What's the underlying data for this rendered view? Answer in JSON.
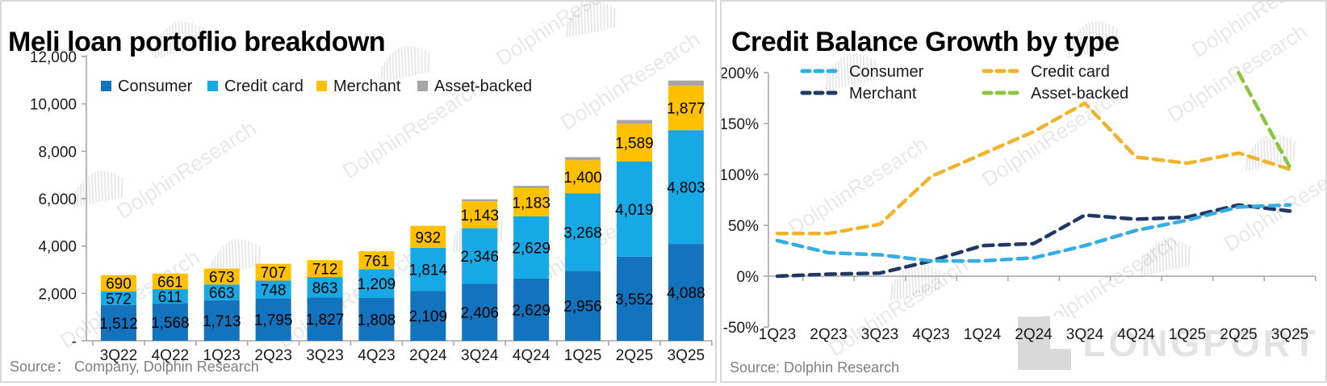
{
  "watermark": {
    "brand": "DolphinResearch",
    "portal": "LONGPORT"
  },
  "left_panel": {
    "title": "Meli loan portoflio breakdown",
    "source": "Source：  Company, Dolphin Research"
  },
  "right_panel": {
    "title": "Credit Balance Growth by type",
    "source": "Source: Dolphin Research"
  },
  "chart_data": [
    {
      "type": "bar",
      "stacked": true,
      "title": "Meli loan portoflio breakdown",
      "categories": [
        "3Q22",
        "4Q22",
        "1Q23",
        "2Q23",
        "3Q23",
        "4Q23",
        "2Q24",
        "3Q24",
        "4Q24",
        "1Q25",
        "2Q25",
        "3Q25"
      ],
      "series": [
        {
          "name": "Consumer",
          "color": "#1373BC",
          "data_labels": true,
          "values": [
            1512,
            1568,
            1713,
            1795,
            1827,
            1808,
            2109,
            2406,
            2629,
            2956,
            3552,
            4088
          ]
        },
        {
          "name": "Credit card",
          "color": "#16A9E6",
          "data_labels": true,
          "values": [
            572,
            611,
            663,
            748,
            863,
            1209,
            1814,
            2346,
            2629,
            3268,
            4019,
            4803
          ]
        },
        {
          "name": "Merchant",
          "color": "#FFC000",
          "data_labels": true,
          "values": [
            690,
            661,
            673,
            707,
            712,
            761,
            932,
            1143,
            1183,
            1400,
            1589,
            1877
          ]
        },
        {
          "name": "Asset-backed",
          "color": "#A6A6A6",
          "data_labels": false,
          "values": [
            0,
            0,
            0,
            0,
            0,
            0,
            0,
            80,
            100,
            130,
            160,
            220
          ]
        }
      ],
      "ylim": [
        0,
        12000
      ],
      "y_ticks": [
        12000,
        10000,
        8000,
        6000,
        4000,
        2000,
        0
      ],
      "y_tick_labels": [
        "12,000",
        "10,000",
        "8,000",
        "6,000",
        "4,000",
        "2,000",
        "-"
      ],
      "grid": false,
      "legend_position": "top"
    },
    {
      "type": "line",
      "title": "Credit Balance Growth by type",
      "x": [
        "1Q23",
        "2Q23",
        "3Q23",
        "4Q23",
        "1Q24",
        "2Q24",
        "3Q24",
        "4Q24",
        "1Q25",
        "2Q25",
        "3Q25"
      ],
      "unit": "%",
      "ylim": [
        -50,
        200
      ],
      "y_ticks": [
        200,
        150,
        100,
        50,
        0,
        -50
      ],
      "y_tick_labels": [
        "200%",
        "150%",
        "100%",
        "50%",
        "0%",
        "-50%"
      ],
      "grid": false,
      "line_style": "dashed",
      "legend_position": "top-two-columns",
      "series": [
        {
          "name": "Consumer",
          "color": "#35ACE3",
          "legend_column": 1,
          "values": [
            35,
            23,
            21,
            15,
            15,
            18,
            30,
            45,
            55,
            68,
            70
          ]
        },
        {
          "name": "Merchant",
          "color": "#1F3864",
          "legend_column": 1,
          "values": [
            0,
            2,
            3,
            15,
            30,
            32,
            60,
            56,
            58,
            70,
            64
          ]
        },
        {
          "name": "Credit card",
          "color": "#F2B32C",
          "legend_column": 2,
          "values": [
            42,
            42,
            51,
            98,
            120,
            142,
            170,
            117,
            111,
            121,
            105
          ]
        },
        {
          "name": "Asset-backed",
          "color": "#8CC540",
          "legend_column": 2,
          "values": [
            null,
            null,
            null,
            null,
            null,
            null,
            null,
            null,
            null,
            200,
            107
          ]
        }
      ]
    }
  ]
}
